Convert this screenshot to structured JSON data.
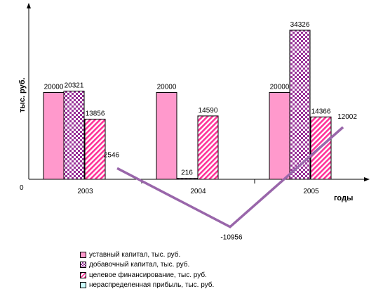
{
  "chart_data": {
    "type": "bar",
    "categories": [
      "2003",
      "2004",
      "2005"
    ],
    "ylabel": "тыс. руб.",
    "xlabel": "годы",
    "y_zero_label": "0",
    "ylim": [
      -17000,
      40000
    ],
    "grid": false,
    "legend_position": "bottom",
    "series": [
      {
        "name": "уставный капитал, тыс. руб.",
        "type": "bar",
        "values": [
          20000,
          20000,
          20000
        ],
        "color": "#ff99cc"
      },
      {
        "name": "добавочный капитал, тыс. руб.",
        "type": "bar",
        "values": [
          20321,
          216,
          34326
        ],
        "color": "#993399"
      },
      {
        "name": "целевое финансирование, тыс. руб.",
        "type": "bar",
        "values": [
          13856,
          14590,
          14366
        ],
        "color": "#ff3399"
      },
      {
        "name": "нераспределенная прибыль, тыс. руб.",
        "type": "line",
        "values": [
          2546,
          -10956,
          12002
        ],
        "color": "#9966aa"
      }
    ],
    "data_labels": [
      [
        "20000",
        "20000",
        "20000"
      ],
      [
        "20321",
        "216",
        "34326"
      ],
      [
        "13856",
        "14590",
        "14366"
      ],
      [
        "2546",
        "-10956",
        "12002"
      ]
    ]
  }
}
